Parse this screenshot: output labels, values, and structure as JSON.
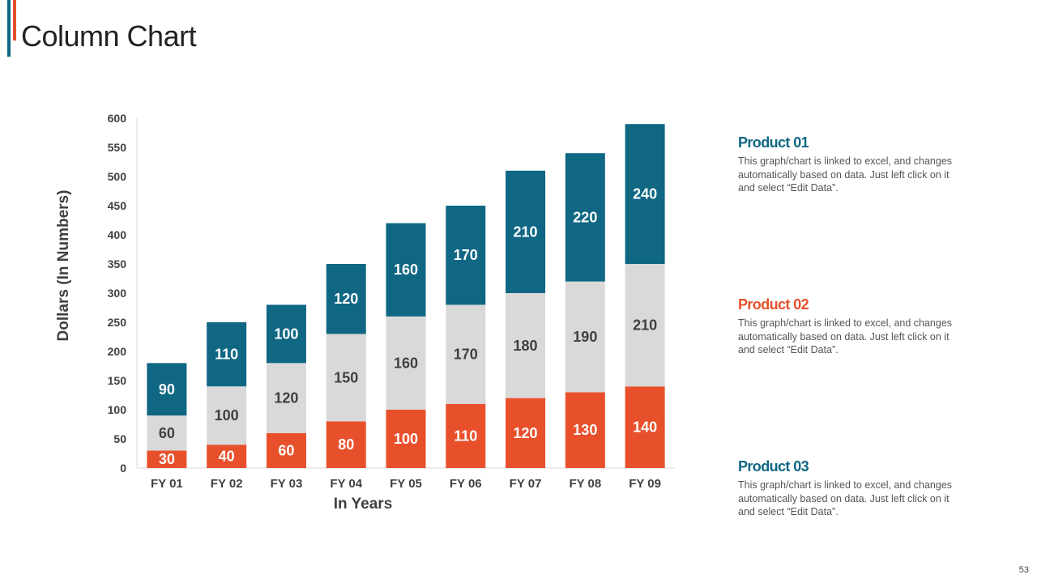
{
  "slide": {
    "title": "Column Chart",
    "page_number": "53"
  },
  "colors": {
    "product01": "#0f6783",
    "product02": "#e8502b",
    "product03": "#d9d9d9",
    "accent_teal": "#0f6783",
    "accent_orange": "#e8502b"
  },
  "legend": [
    {
      "name": "Product 01",
      "description": "This graph/chart is linked to excel, and changes automatically based on data. Just left click on it and select “Edit Data”."
    },
    {
      "name": "Product 02",
      "description": "This graph/chart is linked to excel, and changes automatically based on data. Just left click on it and select “Edit Data”."
    },
    {
      "name": "Product 03",
      "description": "This graph/chart is linked to excel, and changes automatically based on data. Just left click on it and select “Edit Data”."
    }
  ],
  "chart_data": {
    "type": "bar",
    "stacked": true,
    "title": "Column Chart",
    "xlabel": "In Years",
    "ylabel": "Dollars (In Numbers)",
    "ylim": [
      0,
      600
    ],
    "yticks": [
      0,
      50,
      100,
      150,
      200,
      250,
      300,
      350,
      400,
      450,
      500,
      550,
      600
    ],
    "categories": [
      "FY 01",
      "FY 02",
      "FY 03",
      "FY 04",
      "FY 05",
      "FY 06",
      "FY 07",
      "FY 08",
      "FY 09"
    ],
    "series": [
      {
        "name": "Product 02",
        "values": [
          30,
          40,
          60,
          80,
          100,
          110,
          120,
          130,
          140
        ],
        "label_color": "#ffffff"
      },
      {
        "name": "Product 03",
        "values": [
          60,
          100,
          120,
          150,
          160,
          170,
          180,
          190,
          210
        ],
        "label_color": "#404040"
      },
      {
        "name": "Product 01",
        "values": [
          90,
          110,
          100,
          120,
          160,
          170,
          210,
          220,
          240
        ],
        "label_color": "#ffffff"
      }
    ],
    "grid": false,
    "legend_position": "right"
  }
}
